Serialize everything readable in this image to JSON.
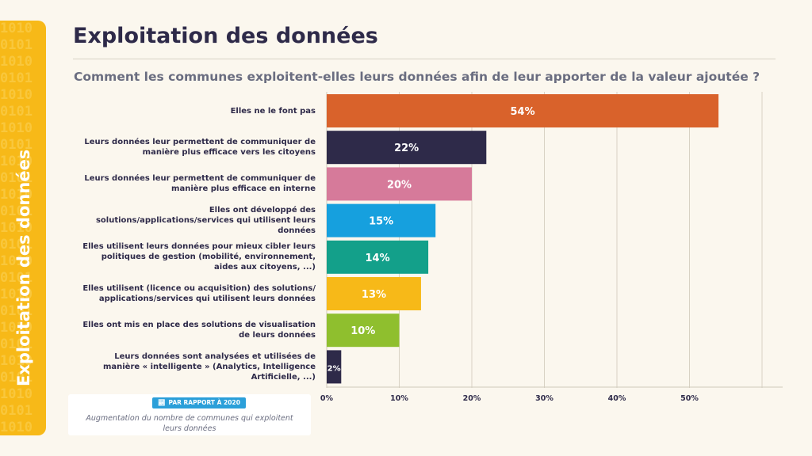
{
  "side_title": "Exploitation des données",
  "page_title": "Exploitation des données",
  "subtitle": "Comment les communes exploitent-elles leurs données afin de leur apporter de la valeur ajoutée ?",
  "note": {
    "badge": "PAR RAPPORT À 2020",
    "badge_icon": "trend-chart-icon",
    "text": "Augmentation du nombre de communes qui exploitent leurs données"
  },
  "chart_data": {
    "type": "bar",
    "orientation": "horizontal",
    "title": "Comment les communes exploitent-elles leurs données afin de leur apporter de la valeur ajoutée ?",
    "categories": [
      "Elles ne le font pas",
      "Leurs données leur permettent de communiquer de manière plus efficace vers les citoyens",
      "Leurs données leur permettent de communiquer de manière plus efficace en interne",
      "Elles ont développé des solutions/applications/services qui utilisent leurs données",
      "Elles utilisent leurs données pour mieux cibler leurs politiques de gestion (mobilité, environnement, aides aux citoyens, ...)",
      "Elles utilisent (licence ou acquisition) des solutions/ applications/services qui utilisent leurs données",
      "Elles ont mis en place des solutions de visualisation de leurs données",
      "Leurs données sont analysées et utilisées de manière « intelligente » (Analytics, Intelligence Artificielle, ...)"
    ],
    "values": [
      54,
      22,
      20,
      15,
      14,
      13,
      10,
      2
    ],
    "value_labels": [
      "54%",
      "22%",
      "20%",
      "15%",
      "14%",
      "13%",
      "10%",
      "2%"
    ],
    "colors": [
      "#d9622b",
      "#2e2a49",
      "#d67a9a",
      "#16a0de",
      "#13a08a",
      "#f7b918",
      "#8fbf2e",
      "#2e2a49"
    ],
    "xlim": [
      0,
      60
    ],
    "xticks": [
      0,
      10,
      20,
      30,
      40,
      50
    ],
    "xtick_labels": [
      "0%",
      "10%",
      "20%",
      "30%",
      "40%",
      "50%"
    ],
    "grid": true,
    "xlabel": "",
    "ylabel": ""
  }
}
